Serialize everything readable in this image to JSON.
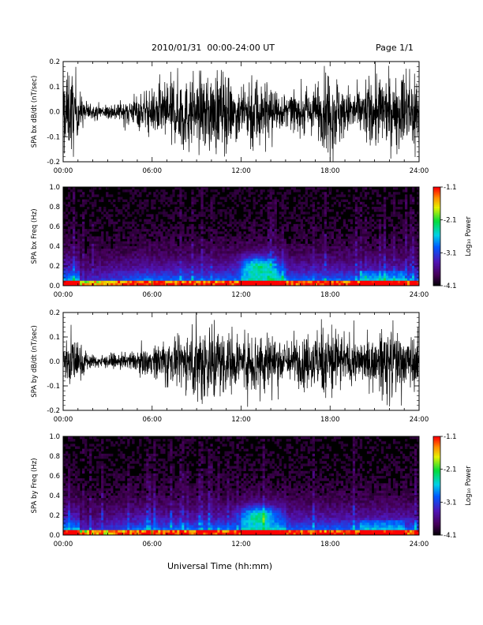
{
  "header": {
    "title": "2010/01/31  00:00-24:00 UT",
    "page": "Page 1/1"
  },
  "x_axis_title": "Universal Time (hh:mm)",
  "colorbar": {
    "label": "Log₁₀ Power",
    "ticks": [
      "-1.1",
      "-2.1",
      "-3.1",
      "-4.1"
    ],
    "range": [
      -4.1,
      -1.1
    ]
  },
  "chart_data": [
    {
      "type": "line",
      "ylabel": "SPA bx dB/dt (nT/sec)",
      "xlim": [
        0,
        24
      ],
      "ylim": [
        -0.2,
        0.2
      ],
      "x_ticks": [
        "00:00",
        "06:00",
        "12:00",
        "18:00",
        "24:00"
      ],
      "y_ticks": [
        "0.2",
        "0.1",
        "0.0",
        "-0.1",
        "-0.2"
      ],
      "envelope_hours": [
        0,
        0.5,
        1,
        1.5,
        2,
        3,
        4,
        5,
        6,
        7,
        8,
        9,
        10,
        11,
        12,
        13,
        14,
        15,
        16,
        17,
        18,
        19,
        20,
        21,
        22,
        23,
        24
      ],
      "envelope_amplitude": [
        0.2,
        0.2,
        0.12,
        0.05,
        0.03,
        0.04,
        0.05,
        0.08,
        0.1,
        0.16,
        0.2,
        0.15,
        0.2,
        0.18,
        0.12,
        0.2,
        0.14,
        0.08,
        0.1,
        0.12,
        0.2,
        0.12,
        0.1,
        0.2,
        0.14,
        0.2,
        0.2
      ]
    },
    {
      "type": "heatmap",
      "ylabel": "SPA bx Freq (Hz)",
      "xlim": [
        0,
        24
      ],
      "ylim": [
        0.0,
        1.0
      ],
      "x_ticks": [
        "00:00",
        "06:00",
        "12:00",
        "18:00",
        "24:00"
      ],
      "y_ticks": [
        "1.0",
        "0.8",
        "0.6",
        "0.4",
        "0.2",
        "0.0"
      ]
    },
    {
      "type": "line",
      "ylabel": "SPA by dB/dt (nT/sec)",
      "xlim": [
        0,
        24
      ],
      "ylim": [
        -0.2,
        0.2
      ],
      "x_ticks": [
        "00:00",
        "06:00",
        "12:00",
        "18:00",
        "24:00"
      ],
      "y_ticks": [
        "0.2",
        "0.1",
        "0.0",
        "-0.1",
        "-0.2"
      ],
      "envelope_hours": [
        0,
        0.5,
        1,
        1.5,
        2,
        3,
        4,
        5,
        6,
        7,
        8,
        9,
        10,
        11,
        12,
        13,
        14,
        15,
        16,
        17,
        18,
        19,
        20,
        21,
        22,
        23,
        24
      ],
      "envelope_amplitude": [
        0.12,
        0.16,
        0.12,
        0.05,
        0.03,
        0.03,
        0.04,
        0.05,
        0.07,
        0.12,
        0.1,
        0.2,
        0.2,
        0.15,
        0.1,
        0.2,
        0.15,
        0.1,
        0.12,
        0.16,
        0.2,
        0.12,
        0.1,
        0.12,
        0.2,
        0.12,
        0.12
      ]
    },
    {
      "type": "heatmap",
      "ylabel": "SPA by Freq (Hz)",
      "xlim": [
        0,
        24
      ],
      "ylim": [
        0.0,
        1.0
      ],
      "x_ticks": [
        "00:00",
        "06:00",
        "12:00",
        "18:00",
        "24:00"
      ],
      "y_ticks": [
        "1.0",
        "0.8",
        "0.6",
        "0.4",
        "0.2",
        "0.0"
      ]
    }
  ]
}
